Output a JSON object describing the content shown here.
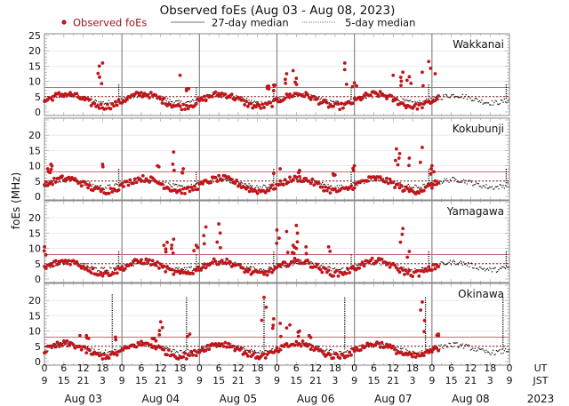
{
  "chart_data": {
    "type": "scatter",
    "title": "Observed foEs (Aug 03 - Aug 08, 2023)",
    "ylabel": "foEs (MHz)",
    "ylim": [
      0,
      25
    ],
    "yticks_first": [
      0,
      5,
      10,
      15,
      20,
      25
    ],
    "yticks": [
      0,
      5,
      10,
      15,
      20
    ],
    "grid": true,
    "legend": {
      "placement": "top",
      "entries": [
        {
          "label": "Observed foEs",
          "style": "red-dot",
          "color": "#c0161b"
        },
        {
          "label": "27-day median",
          "style": "solid-line",
          "color": "#333333"
        },
        {
          "label": "5-day median",
          "style": "dotted-line",
          "color": "#333333"
        }
      ]
    },
    "x_hours_range": [
      0,
      144
    ],
    "x_ticks_ut": [
      "0",
      "6",
      "12",
      "18",
      "0",
      "6",
      "12",
      "18",
      "0",
      "6",
      "12",
      "18",
      "0",
      "6",
      "12",
      "18",
      "0",
      "6",
      "12",
      "18",
      "0",
      "6",
      "12",
      "18",
      "0"
    ],
    "x_ticks_jst": [
      "9",
      "15",
      "21",
      "3",
      "9",
      "15",
      "21",
      "3",
      "9",
      "15",
      "21",
      "3",
      "9",
      "15",
      "21",
      "3",
      "9",
      "15",
      "21",
      "3",
      "9",
      "15",
      "21",
      "3",
      "9"
    ],
    "x_row_labels": [
      "UT",
      "JST"
    ],
    "days": [
      "Aug 03",
      "Aug 04",
      "Aug 05",
      "Aug 06",
      "Aug 07",
      "Aug 08"
    ],
    "year": "2023",
    "observed_until_hours": 122,
    "stations": [
      {
        "name": "Wakkanai",
        "reference_line": 8,
        "median_level": 5,
        "spikes": [
          [
            17,
            15.0
          ],
          [
            18,
            16.0
          ],
          [
            42,
            12.0
          ],
          [
            44,
            7.5
          ],
          [
            69,
            8.3
          ],
          [
            71,
            8.8
          ],
          [
            75,
            12.5
          ],
          [
            77,
            13.5
          ],
          [
            78,
            11.0
          ],
          [
            93,
            16.0
          ],
          [
            96,
            9.5
          ],
          [
            108,
            12.0
          ],
          [
            111,
            13.0
          ],
          [
            113,
            11.5
          ],
          [
            117,
            13.0
          ],
          [
            119,
            16.5
          ],
          [
            121,
            12.5
          ]
        ]
      },
      {
        "name": "Kokubunji",
        "reference_line": 8,
        "median_level": 5,
        "spikes": [
          [
            1,
            9.0
          ],
          [
            2,
            10.5
          ],
          [
            18,
            10.5
          ],
          [
            35,
            10.0
          ],
          [
            40,
            14.5
          ],
          [
            43,
            9.0
          ],
          [
            71,
            7.5
          ],
          [
            73,
            9.0
          ],
          [
            79,
            8.5
          ],
          [
            90,
            7.0
          ],
          [
            96,
            10.0
          ],
          [
            109,
            15.5
          ],
          [
            110,
            14.0
          ],
          [
            113,
            12.5
          ],
          [
            117,
            16.0
          ],
          [
            120,
            10.0
          ]
        ]
      },
      {
        "name": "Yamagawa",
        "reference_line": 8,
        "median_level": 5,
        "spikes": [
          [
            0,
            10.5
          ],
          [
            37,
            11.0
          ],
          [
            38,
            12.0
          ],
          [
            40,
            13.0
          ],
          [
            47,
            11.0
          ],
          [
            50,
            17.0
          ],
          [
            54,
            18.0
          ],
          [
            72,
            16.0
          ],
          [
            75,
            15.5
          ],
          [
            77,
            11.0
          ],
          [
            78,
            17.5
          ],
          [
            81,
            10.5
          ],
          [
            88,
            10.5
          ],
          [
            111,
            16.5
          ],
          [
            113,
            9.0
          ]
        ]
      },
      {
        "name": "Okinawa",
        "reference_line": 8,
        "median_level": 5,
        "spikes": [
          [
            11,
            8.5
          ],
          [
            13,
            8.5
          ],
          [
            22,
            8.0
          ],
          [
            34,
            7.5
          ],
          [
            36,
            13.0
          ],
          [
            45,
            9.0
          ],
          [
            68,
            21.0
          ],
          [
            71,
            14.0
          ],
          [
            73,
            12.5
          ],
          [
            75,
            11.0
          ],
          [
            76,
            12.0
          ],
          [
            79,
            10.0
          ],
          [
            82,
            8.5
          ],
          [
            117,
            19.5
          ],
          [
            122,
            9.0
          ]
        ],
        "median_spikes": [
          [
            21,
            22
          ],
          [
            44,
            21
          ],
          [
            68,
            21
          ],
          [
            93,
            21
          ],
          [
            118,
            21
          ],
          [
            142,
            21
          ]
        ]
      }
    ]
  }
}
